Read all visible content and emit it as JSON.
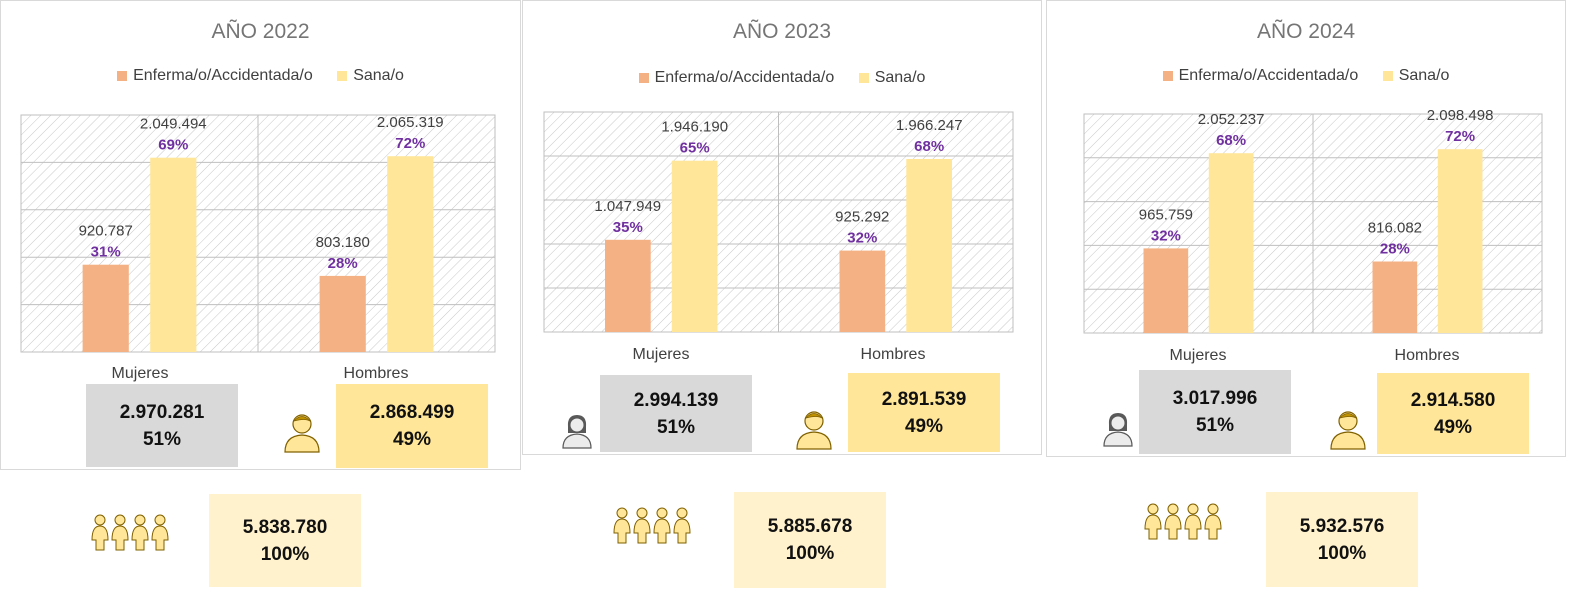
{
  "colors": {
    "enferma": "#f4b183",
    "sana": "#ffe699",
    "percent": "#7030a0",
    "mujeres_box": "#d9d9d9",
    "hombres_box": "#ffe699",
    "total_box": "#fff2cc"
  },
  "icons": {
    "mujeres": "woman-icon",
    "hombres": "man-icon",
    "total": "family-icon"
  },
  "chart_data": [
    {
      "type": "bar",
      "title": "AÑO 2022",
      "categories": [
        "Mujeres",
        "Hombres"
      ],
      "series": [
        {
          "name": "Enferma/o/Accidentada/o",
          "values": [
            920787,
            803180
          ],
          "value_labels": [
            "920.787",
            "803.180"
          ],
          "percent_labels": [
            "31%",
            "28%"
          ]
        },
        {
          "name": "Sana/o",
          "values": [
            2049494,
            2065319
          ],
          "value_labels": [
            "2.049.494",
            "2.065.319"
          ],
          "percent_labels": [
            "69%",
            "72%"
          ]
        }
      ],
      "ylim": [
        0,
        2500000
      ],
      "grid": true,
      "legend": "top",
      "totals": {
        "mujeres": {
          "value": "2.970.281",
          "pct": "51%"
        },
        "hombres": {
          "value": "2.868.499",
          "pct": "49%"
        },
        "total": {
          "value": "5.838.780",
          "pct": "100%"
        }
      }
    },
    {
      "type": "bar",
      "title": "AÑO 2023",
      "categories": [
        "Mujeres",
        "Hombres"
      ],
      "series": [
        {
          "name": "Enferma/o/Accidentada/o",
          "values": [
            1047949,
            925292
          ],
          "value_labels": [
            "1.047.949",
            "925.292"
          ],
          "percent_labels": [
            "35%",
            "32%"
          ]
        },
        {
          "name": "Sana/o",
          "values": [
            1946190,
            1966247
          ],
          "value_labels": [
            "1.946.190",
            "1.966.247"
          ],
          "percent_labels": [
            "65%",
            "68%"
          ]
        }
      ],
      "ylim": [
        0,
        2500000
      ],
      "grid": true,
      "legend": "top",
      "totals": {
        "mujeres": {
          "value": "2.994.139",
          "pct": "51%"
        },
        "hombres": {
          "value": "2.891.539",
          "pct": "49%"
        },
        "total": {
          "value": "5.885.678",
          "pct": "100%"
        }
      }
    },
    {
      "type": "bar",
      "title": "AÑO 2024",
      "categories": [
        "Mujeres",
        "Hombres"
      ],
      "series": [
        {
          "name": "Enferma/o/Accidentada/o",
          "values": [
            965759,
            816082
          ],
          "value_labels": [
            "965.759",
            "816.082"
          ],
          "percent_labels": [
            "32%",
            "28%"
          ]
        },
        {
          "name": "Sana/o",
          "values": [
            2052237,
            2098498
          ],
          "value_labels": [
            "2.052.237",
            "2.098.498"
          ],
          "percent_labels": [
            "68%",
            "72%"
          ]
        }
      ],
      "ylim": [
        0,
        2500000
      ],
      "grid": true,
      "legend": "top",
      "totals": {
        "mujeres": {
          "value": "3.017.996",
          "pct": "51%"
        },
        "hombres": {
          "value": "2.914.580",
          "pct": "49%"
        },
        "total": {
          "value": "5.932.576",
          "pct": "100%"
        }
      }
    }
  ]
}
